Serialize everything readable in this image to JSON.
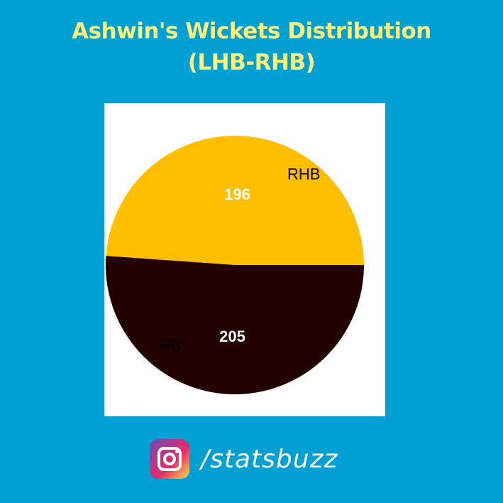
{
  "header": {
    "title_line1": "Ashwin's Wickets Distribution",
    "title_line2": "(LHB-RHB)"
  },
  "chart_data": {
    "type": "pie",
    "slices": [
      {
        "label": "RHB",
        "value": 196,
        "color": "#ffbf00"
      },
      {
        "label": "LHB",
        "value": 205,
        "color": "#230000"
      }
    ],
    "legend": "none"
  },
  "footer": {
    "icon": "instagram-icon",
    "handle": "/statsbuzz"
  }
}
